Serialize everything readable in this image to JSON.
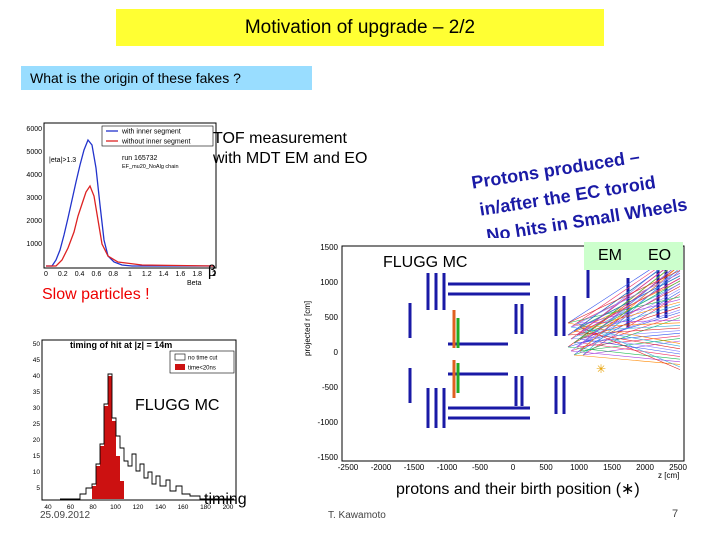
{
  "slide": {
    "title": "Motivation of upgrade – 2/2",
    "question": "What is the origin of these fakes ?",
    "tof_line1": "TOF measurement",
    "tof_line2": "with MDT EM and EO",
    "beta_symbol": "β",
    "slow_particles": "Slow particles !",
    "fluggmc_1": "FLUGG MC",
    "fluggmc_2": "FLUGG MC",
    "timing_label": "timing",
    "em_label": "EM",
    "eo_label": "EO",
    "protons_caption": "protons and their birth position (∗)",
    "rot_line1": "Protons produced –",
    "rot_line2": "in/after the EC toroid",
    "rot_line3": "No hits in Small Wheels",
    "date": "25.09.2012",
    "author": "T. Kawamoto",
    "page_number": "7"
  },
  "hist1": {
    "legend1": "with inner segment",
    "legend2": "without inner segment",
    "stat1": "|eta|>1.3",
    "stat2": "run 165732",
    "stat3": "EF_mu20_NoAlg chain",
    "xaxis_label": "Beta",
    "yticks": [
      "6000",
      "5000",
      "4000",
      "3000",
      "2000",
      "1000"
    ],
    "xticks": [
      "0",
      "0.2",
      "0.4",
      "0.6",
      "0.8",
      "1",
      "1.2",
      "1.4",
      "1.6",
      "1.8",
      "2"
    ]
  },
  "hist2": {
    "title": "timing of hit at |z| = 14m",
    "legend1": "no time cut",
    "legend2": "time<20ns",
    "yticks": [
      "50",
      "45",
      "40",
      "35",
      "30",
      "25",
      "20",
      "15",
      "10",
      "5"
    ],
    "xticks": [
      "40",
      "60",
      "80",
      "100",
      "120",
      "140",
      "160",
      "180",
      "200"
    ]
  },
  "display": {
    "ylabel": "projected r [cm]",
    "yticks": [
      "1500",
      "1000",
      "500",
      "0",
      "-500",
      "-1000",
      "-1500"
    ],
    "xticks": [
      "-2500",
      "-2000",
      "-1500",
      "-1000",
      "-500",
      "0",
      "500",
      "1000",
      "1500",
      "2000",
      "2500"
    ],
    "xlabel": "z [cm]"
  },
  "colors": {
    "title_bg": "#ffff33",
    "question_bg": "#99ddff",
    "tag_bg": "#ccffcc",
    "hist_blue": "#2233cc",
    "hist_red": "#dd2222",
    "rot_text": "#1a1aa6"
  }
}
